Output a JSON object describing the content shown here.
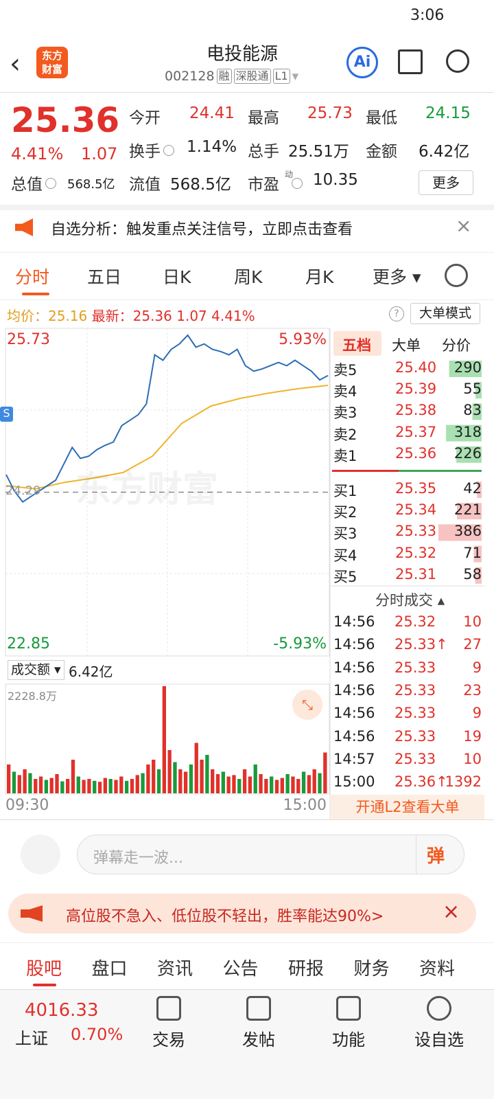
{
  "status": {
    "time": "3:06"
  },
  "header": {
    "logo": [
      "东方",
      "财富"
    ],
    "title": "电投能源",
    "code": "002128",
    "tags": [
      "融",
      "深股通",
      "L1"
    ],
    "ai": "Ai"
  },
  "quote": {
    "price": "25.36",
    "change_pct": "4.41%",
    "change": "1.07",
    "fields": [
      {
        "label": "今开",
        "value": "24.41"
      },
      {
        "label": "最高",
        "value": "25.73"
      },
      {
        "label": "最低",
        "value": "24.15"
      },
      {
        "label": "换手",
        "value": "1.14%"
      },
      {
        "label": "总手",
        "value": "25.51万"
      },
      {
        "label": "金额",
        "value": "6.42亿"
      },
      {
        "label": "总值",
        "value": "568.5亿"
      },
      {
        "label": "流值",
        "value": "568.5亿"
      },
      {
        "label": "市盈",
        "sup": "动",
        "value": "10.35"
      }
    ],
    "more": "更多"
  },
  "notice": "自选分析：触发重点关注信号，立即点击查看",
  "tabs": [
    "分时",
    "五日",
    "日K",
    "周K",
    "月K",
    "更多"
  ],
  "info": {
    "avg_label": "均价：",
    "avg": "25.16",
    "latest_label": "最新：",
    "latest": "25.36",
    "change": "1.07",
    "change_pct": "4.41%",
    "mode": "大单模式"
  },
  "intraday": {
    "ylim": [
      22.85,
      25.73
    ],
    "prev_close": 24.29,
    "top_pct": "5.93%",
    "bottom_pct": "-5.93%",
    "watermark": "东方财富",
    "marker": "S",
    "price": [
      24.45,
      24.3,
      24.2,
      24.25,
      24.3,
      24.35,
      24.4,
      24.55,
      24.7,
      24.6,
      24.62,
      24.68,
      24.72,
      24.75,
      24.9,
      24.95,
      25.0,
      25.1,
      25.55,
      25.5,
      25.6,
      25.65,
      25.73,
      25.62,
      25.65,
      25.6,
      25.58,
      25.55,
      25.6,
      25.45,
      25.4,
      25.42,
      25.45,
      25.48,
      25.45,
      25.5,
      25.45,
      25.4,
      25.32,
      25.36
    ],
    "avg": [
      24.35,
      24.32,
      24.38,
      24.42,
      24.47,
      24.62,
      24.92,
      25.08,
      25.15,
      25.2,
      25.24,
      25.27
    ],
    "volume_label": "成交额",
    "volume_total": "6.42亿",
    "volume_max_label": "2228.8万",
    "volume_max": 2228.8,
    "volume": [
      600,
      450,
      380,
      500,
      420,
      300,
      350,
      280,
      320,
      400,
      250,
      300,
      700,
      350,
      280,
      300,
      260,
      240,
      320,
      300,
      280,
      350,
      260,
      300,
      380,
      420,
      600,
      700,
      500,
      2228.8,
      900,
      650,
      500,
      450,
      600,
      1050,
      700,
      800,
      500,
      400,
      450,
      350,
      380,
      300,
      500,
      350,
      600,
      400,
      300,
      350,
      280,
      320,
      400,
      350,
      300,
      450,
      380,
      500,
      420,
      850
    ],
    "times": [
      "09:30",
      "15:00"
    ]
  },
  "book": {
    "tabs": [
      "五档",
      "大单",
      "分价"
    ],
    "asks": [
      {
        "label": "卖5",
        "price": "25.40",
        "vol": 290
      },
      {
        "label": "卖4",
        "price": "25.39",
        "vol": 55
      },
      {
        "label": "卖3",
        "price": "25.38",
        "vol": 83
      },
      {
        "label": "卖2",
        "price": "25.37",
        "vol": 318
      },
      {
        "label": "卖1",
        "price": "25.36",
        "vol": 226
      }
    ],
    "bids": [
      {
        "label": "买1",
        "price": "25.35",
        "vol": 42
      },
      {
        "label": "买2",
        "price": "25.34",
        "vol": 221
      },
      {
        "label": "买3",
        "price": "25.33",
        "vol": 386
      },
      {
        "label": "买4",
        "price": "25.32",
        "vol": 71
      },
      {
        "label": "买5",
        "price": "25.31",
        "vol": 58
      }
    ],
    "trades_title": "分时成交",
    "trades": [
      {
        "time": "14:56",
        "price": "25.32",
        "vol": 10
      },
      {
        "time": "14:56",
        "price": "25.33",
        "vol": 27,
        "up": true
      },
      {
        "time": "14:56",
        "price": "25.33",
        "vol": 9
      },
      {
        "time": "14:56",
        "price": "25.33",
        "vol": 23
      },
      {
        "time": "14:56",
        "price": "25.33",
        "vol": 9
      },
      {
        "time": "14:56",
        "price": "25.33",
        "vol": 19
      },
      {
        "time": "14:57",
        "price": "25.33",
        "vol": 10
      },
      {
        "time": "15:00",
        "price": "25.36",
        "vol": 1392,
        "up": true
      }
    ],
    "l2": "开通L2查看大单"
  },
  "danmu": {
    "placeholder": "弹幕走一波...",
    "button": "弹"
  },
  "ad": "高位股不急入、低位股不轻出，胜率能达90%>",
  "bottom_tabs": [
    "股吧",
    "盘口",
    "资讯",
    "公告",
    "研报",
    "财务",
    "资料"
  ],
  "footer": {
    "index_value": "4016.33",
    "index_name": "上证",
    "index_pct": "0.70%",
    "buttons": [
      "交易",
      "发帖",
      "功能",
      "设自选"
    ]
  }
}
